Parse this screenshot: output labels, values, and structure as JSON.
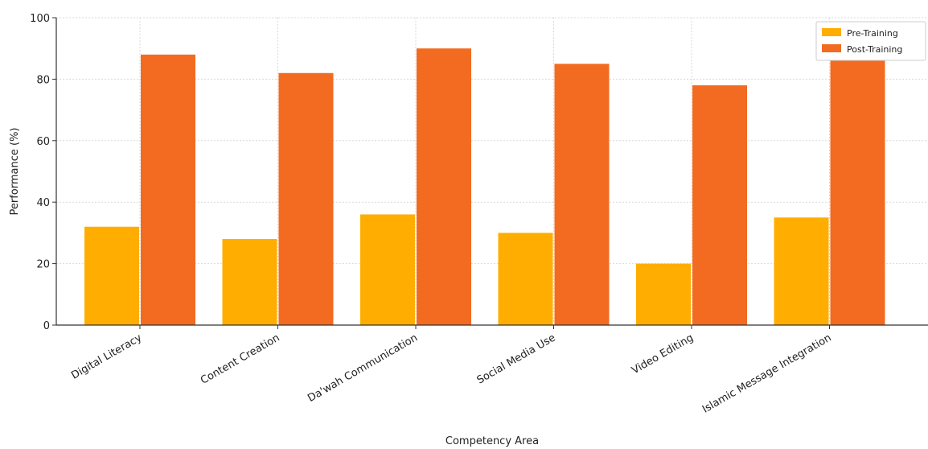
{
  "chart_data": {
    "type": "bar",
    "title": "",
    "xlabel": "Competency Area",
    "ylabel": "Performance (%)",
    "ylim": [
      0,
      100
    ],
    "yticks": [
      0,
      20,
      40,
      60,
      80,
      100
    ],
    "grid": true,
    "legend_position": "top-right",
    "categories": [
      "Digital Literacy",
      "Content Creation",
      "Da'wah Communication",
      "Social Media Use",
      "Video Editing",
      "Islamic Message Integration"
    ],
    "series": [
      {
        "name": "Pre-Training",
        "color": "#ffad00",
        "values": [
          32,
          28,
          36,
          30,
          20,
          35
        ]
      },
      {
        "name": "Post-Training",
        "color": "#f26b21",
        "values": [
          88,
          82,
          90,
          85,
          78,
          88
        ]
      }
    ]
  }
}
